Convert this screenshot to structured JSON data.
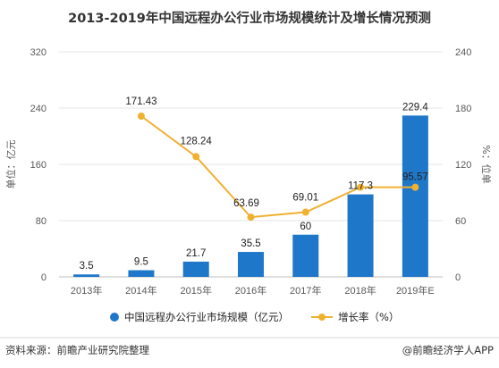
{
  "chart_data": {
    "type": "bar",
    "title": "2013-2019年中国远程办公行业市场规模统计及增长情况预测",
    "categories": [
      "2013年",
      "2014年",
      "2015年",
      "2016年",
      "2017年",
      "2018年",
      "2019年E"
    ],
    "series": [
      {
        "name": "中国远程办公行业市场规模（亿元）",
        "type": "bar",
        "axis": "left",
        "color": "#1f77c9",
        "values": [
          3.5,
          9.5,
          21.7,
          35.5,
          60,
          117.3,
          229.4
        ]
      },
      {
        "name": "增长率（%）",
        "type": "line",
        "axis": "right",
        "color": "#f0b030",
        "values": [
          null,
          171.43,
          128.24,
          63.69,
          69.01,
          95.57,
          95.57
        ]
      }
    ],
    "bar_labels": [
      "3.5",
      "9.5",
      "21.7",
      "35.5",
      "60",
      "117.3",
      "229.4"
    ],
    "line_labels": [
      "",
      "171.43",
      "128.24",
      "63.69",
      "69.01",
      "",
      "95.57"
    ],
    "ylabel_left": "单位：亿元",
    "ylabel_right": "%：位单",
    "ylim_left": [
      0,
      320
    ],
    "ylim_right": [
      0,
      240
    ],
    "yticks_left": [
      "0",
      "80",
      "160",
      "240",
      "320"
    ],
    "yticks_right": [
      "0",
      "60",
      "120",
      "180",
      "240"
    ],
    "grid": true,
    "legend_position": "bottom"
  },
  "footer": {
    "source": "资料来源：前瞻产业研究院整理",
    "brand": "@前瞻经济学人APP"
  }
}
